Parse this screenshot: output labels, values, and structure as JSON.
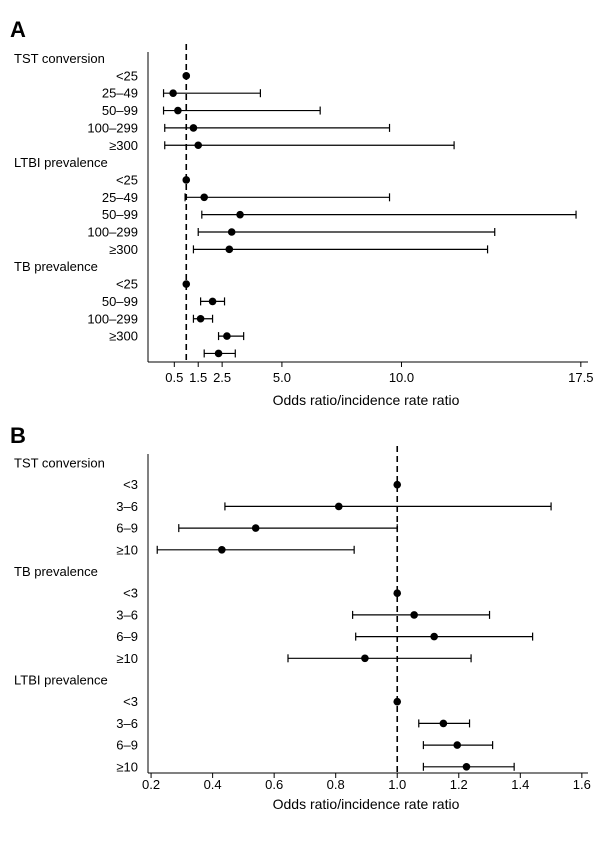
{
  "chart_data": [
    {
      "type": "forest",
      "panel_label": "A",
      "xlabel": "Odds ratio/incidence rate ratio",
      "xlim": [
        -0.6,
        17.8
      ],
      "reference_line": 1,
      "ticks": [
        {
          "value": 0.5,
          "label": "0.5"
        },
        {
          "value": 1.5,
          "label": "1.5"
        },
        {
          "value": 2.5,
          "label": "2.5"
        },
        {
          "value": 5.0,
          "label": "5.0"
        },
        {
          "value": 10.0,
          "label": "10.0"
        },
        {
          "value": 17.5,
          "label": "17.5"
        }
      ],
      "rows": [
        {
          "label": "TST conversion",
          "header": true
        },
        {
          "label": "<25",
          "est": 1.0
        },
        {
          "label": "25–49",
          "est": 0.45,
          "lo": 0.05,
          "hi": 4.1
        },
        {
          "label": "50–99",
          "est": 0.65,
          "lo": 0.05,
          "hi": 6.6
        },
        {
          "label": "100–299",
          "est": 1.3,
          "lo": 0.1,
          "hi": 9.5
        },
        {
          "label": "≥300",
          "est": 1.5,
          "lo": 0.1,
          "hi": 12.2
        },
        {
          "label": "LTBI prevalence",
          "header": true
        },
        {
          "label": "<25",
          "est": 1.0
        },
        {
          "label": "25–49",
          "est": 1.75,
          "lo": 0.95,
          "hi": 9.5
        },
        {
          "label": "50–99",
          "est": 3.25,
          "lo": 1.65,
          "hi": 17.3
        },
        {
          "label": "100–299",
          "est": 2.9,
          "lo": 1.5,
          "hi": 13.9
        },
        {
          "label": "≥300",
          "est": 2.8,
          "lo": 1.3,
          "hi": 13.6
        },
        {
          "label": "TB prevalence",
          "header": true
        },
        {
          "label": "<25",
          "est": 1.0
        },
        {
          "label": "50–99",
          "est": 2.1,
          "lo": 1.6,
          "hi": 2.6
        },
        {
          "label": "100–299",
          "est": 1.6,
          "lo": 1.3,
          "hi": 2.1
        },
        {
          "label": "≥300",
          "est": 2.7,
          "lo": 2.35,
          "hi": 3.4
        },
        {
          "label": "",
          "est": 2.35,
          "lo": 1.75,
          "hi": 3.05
        }
      ]
    },
    {
      "type": "forest",
      "panel_label": "B",
      "xlabel": "Odds ratio/incidence rate ratio",
      "xlim": [
        0.19,
        1.62
      ],
      "reference_line": 1,
      "ticks": [
        {
          "value": 0.2,
          "label": "0.2"
        },
        {
          "value": 0.4,
          "label": "0.4"
        },
        {
          "value": 0.6,
          "label": "0.6"
        },
        {
          "value": 0.8,
          "label": "0.8"
        },
        {
          "value": 1.0,
          "label": "1.0"
        },
        {
          "value": 1.2,
          "label": "1.2"
        },
        {
          "value": 1.4,
          "label": "1.4"
        },
        {
          "value": 1.6,
          "label": "1.6"
        }
      ],
      "rows": [
        {
          "label": "TST conversion",
          "header": true
        },
        {
          "label": "<3",
          "est": 1.0
        },
        {
          "label": "3–6",
          "est": 0.81,
          "lo": 0.44,
          "hi": 1.5
        },
        {
          "label": "6–9",
          "est": 0.54,
          "lo": 0.29,
          "hi": 1.0
        },
        {
          "label": "≥10",
          "est": 0.43,
          "lo": 0.22,
          "hi": 0.86
        },
        {
          "label": "TB prevalence",
          "header": true
        },
        {
          "label": "<3",
          "est": 1.0
        },
        {
          "label": "3–6",
          "est": 1.055,
          "lo": 0.855,
          "hi": 1.3
        },
        {
          "label": "6–9",
          "est": 1.12,
          "lo": 0.865,
          "hi": 1.44
        },
        {
          "label": "≥10",
          "est": 0.895,
          "lo": 0.645,
          "hi": 1.24
        },
        {
          "label": "LTBI prevalence",
          "header": true
        },
        {
          "label": "<3",
          "est": 1.0
        },
        {
          "label": "3–6",
          "est": 1.15,
          "lo": 1.07,
          "hi": 1.235
        },
        {
          "label": "6–9",
          "est": 1.195,
          "lo": 1.085,
          "hi": 1.31
        },
        {
          "label": "≥10",
          "est": 1.225,
          "lo": 1.085,
          "hi": 1.38
        }
      ]
    }
  ]
}
